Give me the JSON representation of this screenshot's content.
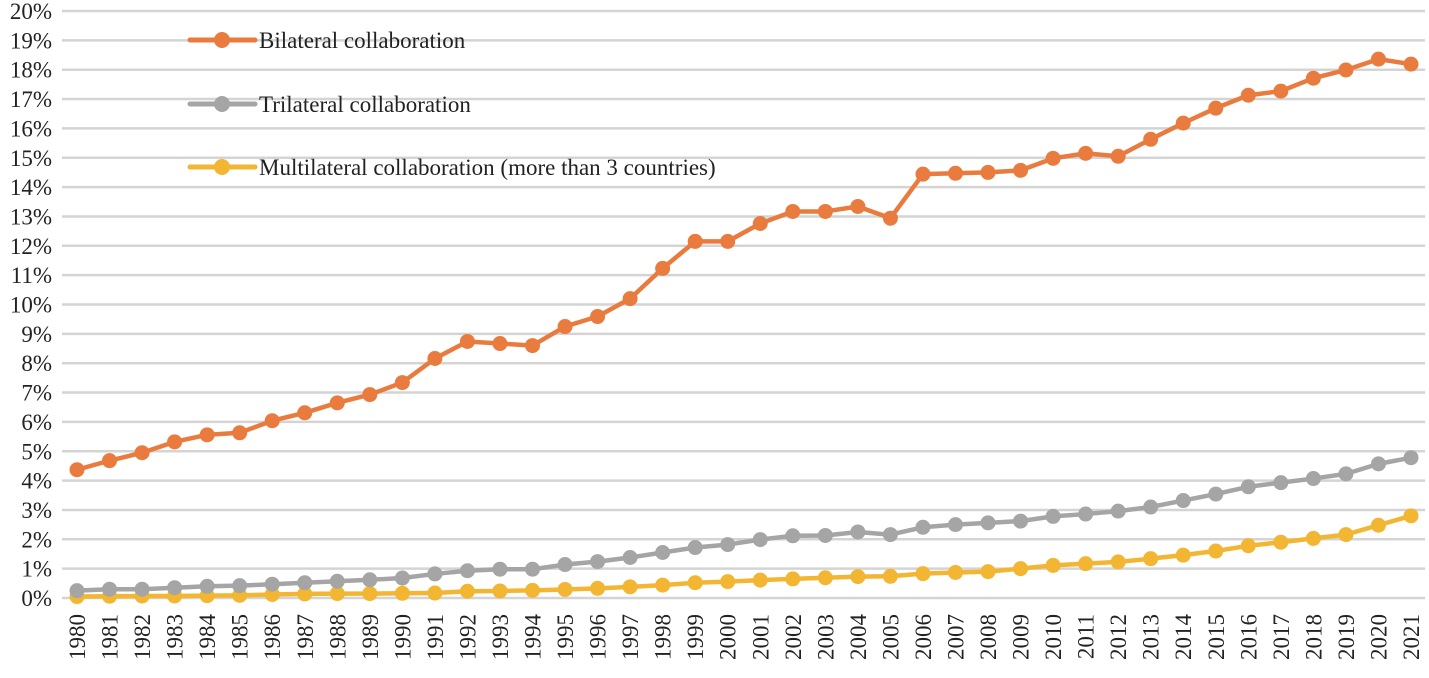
{
  "chart_data": {
    "type": "line",
    "title": "",
    "xlabel": "",
    "ylabel": "",
    "ylim": [
      0,
      20
    ],
    "y_ticks": [
      "0%",
      "1%",
      "2%",
      "3%",
      "4%",
      "5%",
      "6%",
      "7%",
      "8%",
      "9%",
      "10%",
      "11%",
      "12%",
      "13%",
      "14%",
      "15%",
      "16%",
      "17%",
      "18%",
      "19%",
      "20%"
    ],
    "grid": true,
    "legend_position": "top-left",
    "x": [
      "1980",
      "1981",
      "1982",
      "1983",
      "1984",
      "1985",
      "1986",
      "1987",
      "1988",
      "1989",
      "1990",
      "1991",
      "1992",
      "1993",
      "1994",
      "1995",
      "1996",
      "1997",
      "1998",
      "1999",
      "2000",
      "2001",
      "2002",
      "2003",
      "2004",
      "2005",
      "2006",
      "2007",
      "2008",
      "2009",
      "2010",
      "2011",
      "2012",
      "2013",
      "2014",
      "2015",
      "2016",
      "2017",
      "2018",
      "2019",
      "2020",
      "2021"
    ],
    "series": [
      {
        "name": "Bilateral collaboration",
        "color": "#E97B3E",
        "values": [
          4.37,
          4.68,
          4.95,
          5.32,
          5.56,
          5.63,
          6.04,
          6.31,
          6.65,
          6.93,
          7.34,
          8.16,
          8.74,
          8.67,
          8.6,
          9.25,
          9.59,
          10.2,
          11.23,
          12.15,
          12.15,
          12.76,
          13.17,
          13.17,
          13.34,
          12.94,
          14.44,
          14.47,
          14.5,
          14.57,
          14.98,
          15.15,
          15.05,
          15.63,
          16.18,
          16.69,
          17.13,
          17.27,
          17.71,
          17.99,
          18.36,
          18.19
        ]
      },
      {
        "name": "Trilateral collaboration",
        "color": "#A5A5A5",
        "values": [
          0.25,
          0.3,
          0.3,
          0.35,
          0.4,
          0.42,
          0.47,
          0.52,
          0.57,
          0.62,
          0.68,
          0.82,
          0.93,
          0.98,
          0.98,
          1.14,
          1.24,
          1.38,
          1.55,
          1.72,
          1.82,
          1.99,
          2.12,
          2.13,
          2.25,
          2.16,
          2.41,
          2.5,
          2.56,
          2.62,
          2.78,
          2.86,
          2.96,
          3.1,
          3.32,
          3.54,
          3.79,
          3.93,
          4.07,
          4.23,
          4.57,
          4.78
        ]
      },
      {
        "name": "Multilateral collaboration (more than 3 countries)",
        "color": "#F2B632",
        "values": [
          0.05,
          0.06,
          0.07,
          0.07,
          0.08,
          0.09,
          0.12,
          0.14,
          0.15,
          0.15,
          0.16,
          0.17,
          0.23,
          0.24,
          0.26,
          0.29,
          0.33,
          0.38,
          0.44,
          0.52,
          0.56,
          0.61,
          0.65,
          0.69,
          0.73,
          0.74,
          0.83,
          0.87,
          0.9,
          1.0,
          1.11,
          1.17,
          1.23,
          1.34,
          1.46,
          1.6,
          1.78,
          1.9,
          2.03,
          2.16,
          2.48,
          2.8
        ]
      }
    ]
  }
}
